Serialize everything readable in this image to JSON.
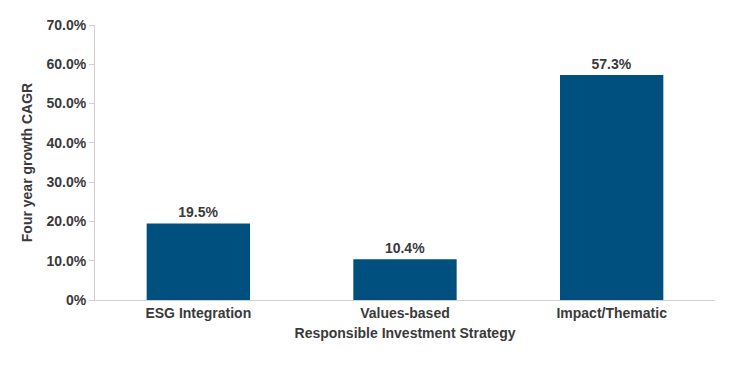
{
  "chart_data": {
    "type": "bar",
    "xlabel": "Responsible Investment Strategy",
    "ylabel": "Four year growth CAGR",
    "categories": [
      "ESG Integration",
      "Values-based",
      "Impact/Thematic"
    ],
    "values": [
      19.5,
      10.4,
      57.3
    ],
    "value_labels": [
      "19.5%",
      "10.4%",
      "57.3%"
    ],
    "data_labels": true,
    "color": "#00507f",
    "ylim": [
      0,
      70
    ],
    "yticks": [
      {
        "value": 0,
        "label": "0%"
      },
      {
        "value": 10,
        "label": "10.0%"
      },
      {
        "value": 20,
        "label": "20.0%"
      },
      {
        "value": 30,
        "label": "30.0%"
      },
      {
        "value": 40,
        "label": "40.0%"
      },
      {
        "value": 50,
        "label": "50.0%"
      },
      {
        "value": 60,
        "label": "60.0%"
      },
      {
        "value": 70,
        "label": "70.0%"
      }
    ],
    "grid": false
  }
}
